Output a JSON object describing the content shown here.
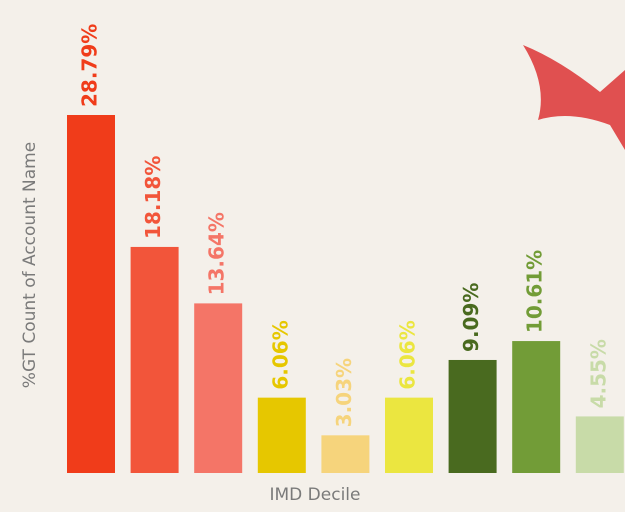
{
  "chart_data": {
    "type": "bar",
    "x_label": "IMD Decile",
    "y_label": "%GT Count of Account Name",
    "categories": [
      null,
      null,
      null,
      null,
      null,
      null,
      null,
      null,
      null
    ],
    "values": [
      28.79,
      18.18,
      13.64,
      6.06,
      3.03,
      6.06,
      9.09,
      10.61,
      4.55
    ],
    "value_labels": [
      "28.79%",
      "18.18%",
      "13.64%",
      "6.06%",
      "3.03%",
      "6.06%",
      "9.09%",
      "10.61%",
      "4.55%"
    ],
    "colors": [
      "#f03c1a",
      "#f2553a",
      "#f47567",
      "#e6c700",
      "#f6d47c",
      "#ebe640",
      "#496a1f",
      "#729c37",
      "#c8dba8"
    ]
  }
}
